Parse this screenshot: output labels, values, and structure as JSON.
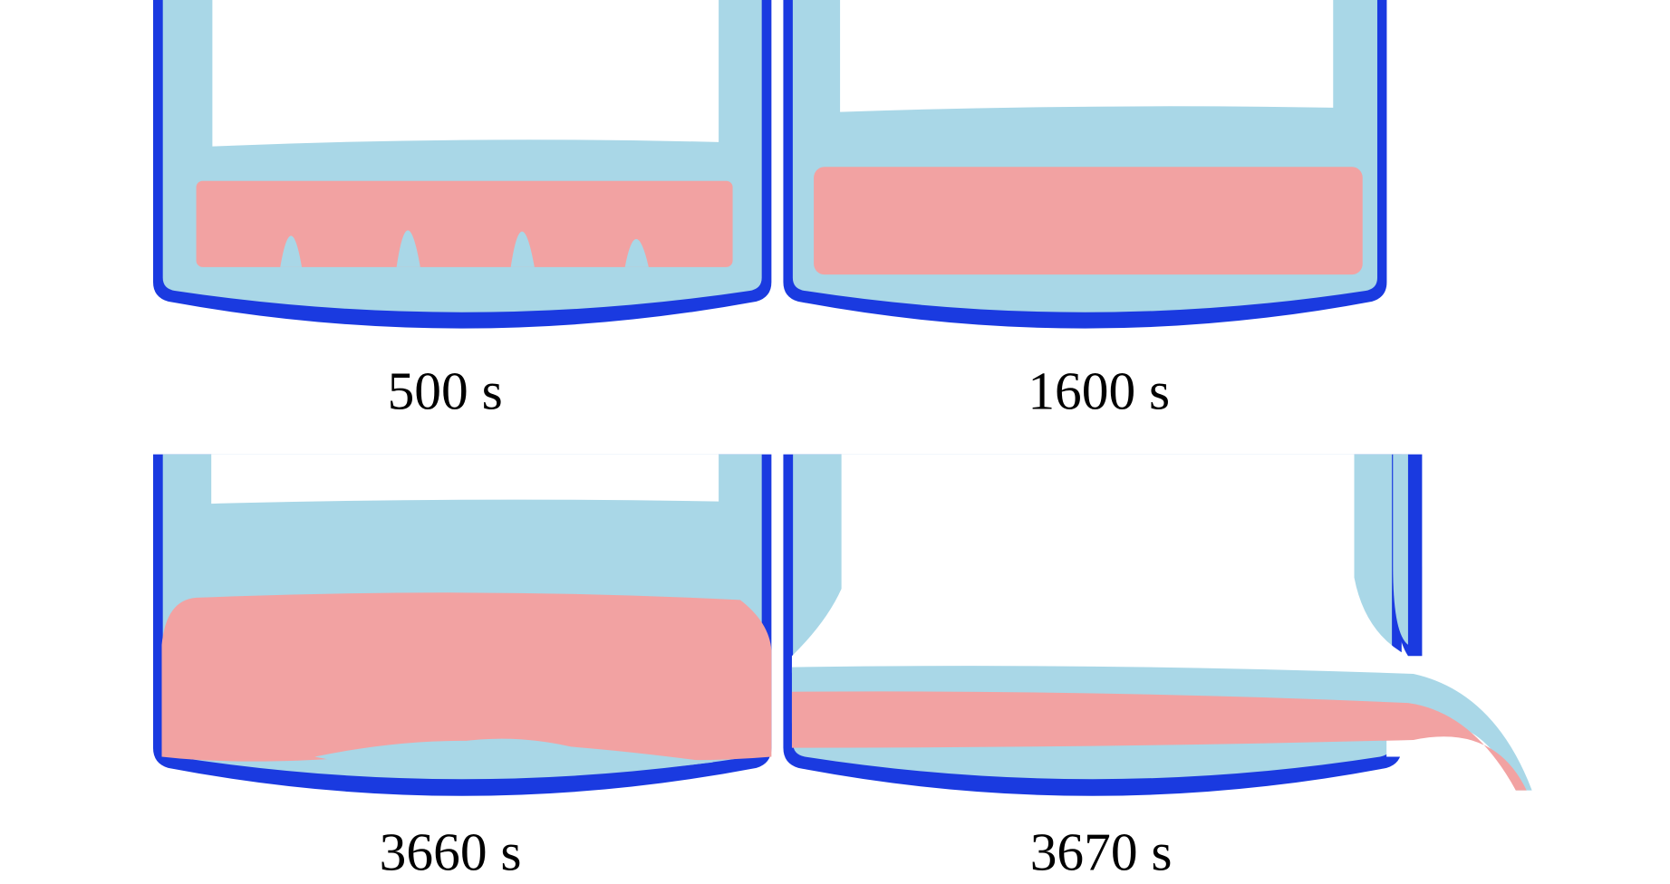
{
  "panels": [
    {
      "label": "500 s"
    },
    {
      "label": "1600 s"
    },
    {
      "label": "3660 s"
    },
    {
      "label": "3670 s"
    }
  ]
}
